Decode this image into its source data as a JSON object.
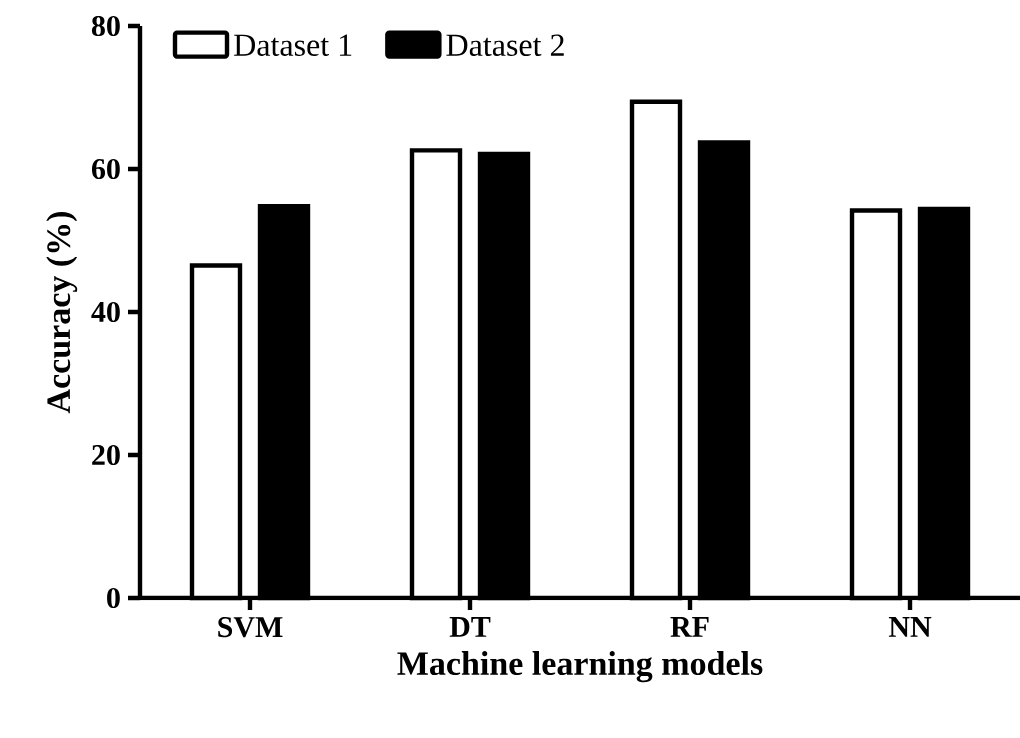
{
  "chart_data": {
    "type": "bar",
    "xlabel": "Machine learning models",
    "ylabel": "Accuracy (%)",
    "categories": [
      "SVM",
      "DT",
      "RF",
      "NN"
    ],
    "series": [
      {
        "name": "Dataset 1",
        "color": "#ffffff",
        "values": [
          46.5,
          62.6,
          69.4,
          54.2
        ]
      },
      {
        "name": "Dataset 2",
        "color": "#000000",
        "values": [
          54.8,
          62.1,
          63.7,
          54.4
        ]
      }
    ],
    "ylim": [
      0,
      80
    ],
    "yticks": [
      0,
      20,
      40,
      60,
      80
    ],
    "legend": "top left",
    "grid": false
  }
}
